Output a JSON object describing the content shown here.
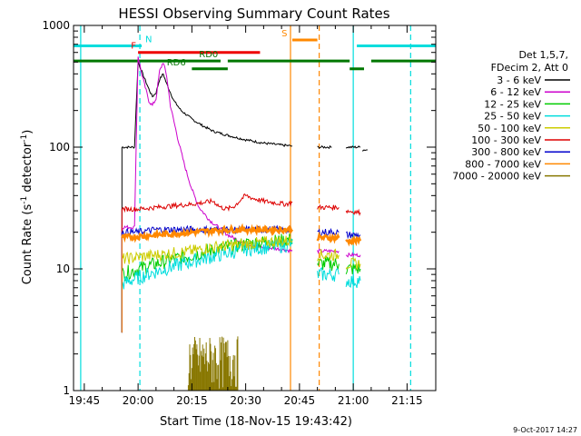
{
  "chart_data": {
    "type": "line",
    "title": "HESSI Observing Summary Count Rates",
    "xlabel": "Start Time (18-Nov-15 19:43:42)",
    "ylabel_main": "Count Rate (s",
    "ylabel_sup1": "-1",
    "ylabel_mid": " detector",
    "ylabel_sup2": "-1",
    "ylabel_end": ")",
    "yscale": "log",
    "ylim": [
      1,
      1000
    ],
    "xlim_minutes": [
      -3,
      98
    ],
    "x_ticks": [
      {
        "t": 0,
        "label": "19:45"
      },
      {
        "t": 15,
        "label": "20:00"
      },
      {
        "t": 30,
        "label": "20:15"
      },
      {
        "t": 45,
        "label": "20:30"
      },
      {
        "t": 60,
        "label": "20:45"
      },
      {
        "t": 75,
        "label": "21:00"
      },
      {
        "t": 90,
        "label": "21:15"
      }
    ],
    "y_ticks": [
      {
        "v": 1,
        "label": "1"
      },
      {
        "v": 10,
        "label": "10"
      },
      {
        "v": 100,
        "label": "100"
      },
      {
        "v": 1000,
        "label": "1000"
      }
    ],
    "legend_header": [
      "Det 1,5,7,",
      "FDecim 2, Att 0"
    ],
    "legend_position": "right",
    "series": [
      {
        "name": "3 - 6 keV",
        "color": "#000000",
        "points": [
          [
            10.5,
            100
          ],
          [
            14,
            100
          ],
          [
            15,
            500
          ],
          [
            16,
            420
          ],
          [
            18,
            300
          ],
          [
            19,
            260
          ],
          [
            20,
            280
          ],
          [
            21,
            360
          ],
          [
            22,
            400
          ],
          [
            23,
            330
          ],
          [
            25,
            240
          ],
          [
            27,
            200
          ],
          [
            30,
            170
          ],
          [
            33,
            150
          ],
          [
            36,
            135
          ],
          [
            40,
            125
          ],
          [
            45,
            115
          ],
          [
            50,
            108
          ],
          [
            55,
            104
          ],
          [
            58,
            102
          ]
        ],
        "segments2": [
          [
            [
              65,
              100
            ],
            [
              69,
              100
            ]
          ],
          [
            [
              73,
              100
            ],
            [
              77,
              100
            ]
          ],
          [
            [
              77.5,
              95
            ],
            [
              79,
              95
            ]
          ]
        ]
      },
      {
        "name": "6 - 12 keV",
        "color": "#cc00cc",
        "points": [
          [
            10.5,
            22
          ],
          [
            14,
            22
          ],
          [
            15,
            560
          ],
          [
            16,
            400
          ],
          [
            18,
            240
          ],
          [
            19,
            220
          ],
          [
            20,
            250
          ],
          [
            21,
            420
          ],
          [
            22,
            500
          ],
          [
            23,
            380
          ],
          [
            24,
            220
          ],
          [
            26,
            120
          ],
          [
            28,
            70
          ],
          [
            30,
            45
          ],
          [
            32,
            32
          ],
          [
            35,
            25
          ],
          [
            40,
            19
          ],
          [
            45,
            16
          ],
          [
            50,
            15
          ],
          [
            55,
            14.5
          ],
          [
            58,
            14
          ]
        ],
        "segments2": [
          [
            [
              65,
              14
            ],
            [
              71,
              14
            ]
          ],
          [
            [
              73,
              13
            ],
            [
              77,
              13
            ]
          ]
        ]
      },
      {
        "name": "12 - 25 keV",
        "color": "#00cc00",
        "points": [
          [
            10.5,
            9
          ],
          [
            15,
            10
          ],
          [
            20,
            11
          ],
          [
            25,
            12
          ],
          [
            30,
            13
          ],
          [
            35,
            14
          ],
          [
            40,
            15
          ],
          [
            45,
            16
          ],
          [
            50,
            16.5
          ],
          [
            55,
            17
          ],
          [
            58,
            17.5
          ]
        ],
        "segments2": [
          [
            [
              65,
              11
            ],
            [
              71,
              11
            ]
          ],
          [
            [
              73,
              10
            ],
            [
              77,
              10
            ]
          ]
        ]
      },
      {
        "name": "25 - 50 keV",
        "color": "#00dddd",
        "points": [
          [
            10.5,
            7.5
          ],
          [
            15,
            8.5
          ],
          [
            20,
            9.5
          ],
          [
            25,
            10.5
          ],
          [
            30,
            11.5
          ],
          [
            35,
            12.5
          ],
          [
            40,
            13.5
          ],
          [
            45,
            14.5
          ],
          [
            50,
            15
          ],
          [
            55,
            15.5
          ],
          [
            58,
            16
          ]
        ],
        "segments2": [
          [
            [
              65,
              9
            ],
            [
              71,
              9
            ]
          ],
          [
            [
              73,
              8
            ],
            [
              77,
              8
            ]
          ]
        ]
      },
      {
        "name": "50 - 100 keV",
        "color": "#cccc00",
        "points": [
          [
            10.5,
            12
          ],
          [
            15,
            12.5
          ],
          [
            20,
            13
          ],
          [
            25,
            13.5
          ],
          [
            30,
            14
          ],
          [
            35,
            15
          ],
          [
            40,
            15.5
          ],
          [
            45,
            16
          ],
          [
            50,
            16.5
          ],
          [
            55,
            17
          ],
          [
            58,
            17
          ]
        ],
        "segments2": [
          [
            [
              65,
              13
            ],
            [
              71,
              13
            ]
          ],
          [
            [
              73,
              11
            ],
            [
              77,
              11
            ]
          ]
        ]
      },
      {
        "name": "100 - 300 keV",
        "color": "#dd0000",
        "points": [
          [
            10.5,
            31
          ],
          [
            15,
            31
          ],
          [
            20,
            32
          ],
          [
            25,
            33
          ],
          [
            30,
            34
          ],
          [
            33,
            35
          ],
          [
            36,
            36
          ],
          [
            38,
            32
          ],
          [
            40,
            31
          ],
          [
            42,
            33
          ],
          [
            44,
            38
          ],
          [
            45,
            40
          ],
          [
            47,
            38
          ],
          [
            50,
            36
          ],
          [
            53,
            35
          ],
          [
            56,
            34
          ],
          [
            58,
            35
          ]
        ],
        "segments2": [
          [
            [
              65,
              32
            ],
            [
              71,
              32
            ]
          ],
          [
            [
              73,
              30
            ],
            [
              77,
              29
            ]
          ]
        ]
      },
      {
        "name": "300 - 800 keV",
        "color": "#0000cc",
        "points": [
          [
            10.5,
            20
          ],
          [
            15,
            20
          ],
          [
            20,
            21
          ],
          [
            25,
            21
          ],
          [
            30,
            21
          ],
          [
            35,
            21
          ],
          [
            40,
            21
          ],
          [
            45,
            21
          ],
          [
            50,
            21
          ],
          [
            55,
            21
          ],
          [
            58,
            21
          ]
        ],
        "segments2": [
          [
            [
              65,
              20
            ],
            [
              71,
              20
            ]
          ],
          [
            [
              73,
              19
            ],
            [
              77,
              19
            ]
          ]
        ]
      },
      {
        "name": "800 - 7000 keV",
        "color": "#ff8800",
        "points": [
          [
            10.5,
            18
          ],
          [
            15,
            18.5
          ],
          [
            20,
            19
          ],
          [
            25,
            19.5
          ],
          [
            30,
            20
          ],
          [
            35,
            20.5
          ],
          [
            40,
            21
          ],
          [
            45,
            21
          ],
          [
            50,
            21
          ],
          [
            55,
            21
          ],
          [
            58,
            21
          ]
        ],
        "segments2": [
          [
            [
              65,
              18
            ],
            [
              71,
              18
            ]
          ],
          [
            [
              73,
              17
            ],
            [
              77,
              17
            ]
          ]
        ]
      },
      {
        "name": "7000 - 20000 keV",
        "color": "#887700",
        "points": [],
        "segments2": []
      }
    ],
    "bursty_series": {
      "name": "7000 - 20000 keV",
      "color": "#887700",
      "t_start": 29,
      "t_end": 43,
      "max": 2.8
    },
    "flags": [
      {
        "label": "N",
        "color": "#00dddd",
        "t_start": -3,
        "t_end": 16,
        "level": 680,
        "label_t": 17
      },
      {
        "label": "",
        "color": "#00dddd",
        "t_start": 76,
        "t_end": 98,
        "level": 680,
        "label_t": 0
      },
      {
        "label": "F",
        "color": "#ee0000",
        "t_start": 15,
        "t_end": 49,
        "level": 600,
        "label_t": 13
      },
      {
        "label": "S",
        "color": "#ff8800",
        "t_start": 58,
        "t_end": 65,
        "level": 760,
        "label_t": 55
      },
      {
        "label": "RD0",
        "color": "#007700",
        "t_start": -3,
        "t_end": 38,
        "level": 510,
        "label_t": 32
      },
      {
        "label": "",
        "color": "#007700",
        "t_start": 40,
        "t_end": 74,
        "level": 510,
        "label_t": 0
      },
      {
        "label": "",
        "color": "#007700",
        "t_start": 74,
        "t_end": 78,
        "level": 440,
        "label_t": 0
      },
      {
        "label": "",
        "color": "#007700",
        "t_start": 80,
        "t_end": 98,
        "level": 510,
        "label_t": 0
      },
      {
        "label": "RD6",
        "color": "#007700",
        "t_start": 30,
        "t_end": 40,
        "level": 440,
        "label_t": 23
      }
    ],
    "vlines": [
      {
        "t": 15.5,
        "color": "#00dddd",
        "style": "dashed"
      },
      {
        "t": 75,
        "color": "#00dddd",
        "style": "solid"
      },
      {
        "t": 91,
        "color": "#00dddd",
        "style": "dashed"
      },
      {
        "t": 57.5,
        "color": "#ff8800",
        "style": "solid"
      },
      {
        "t": 65.5,
        "color": "#ff8800",
        "style": "dashed"
      },
      {
        "t": -1,
        "color": "#00dddd",
        "style": "solid"
      }
    ],
    "footer": "9-Oct-2017 14:27"
  }
}
